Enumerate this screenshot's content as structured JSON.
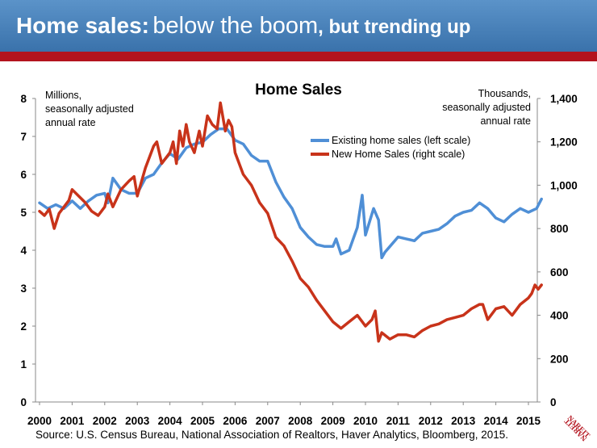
{
  "banner": {
    "title_part1": "Home sales:",
    "title_part2": "below the boom",
    "title_part3": ", but trending up"
  },
  "colors": {
    "banner_blue": "#4a82bb",
    "banner_red": "#b3131e",
    "existing_series": "#4f8fd6",
    "new_series": "#c8331a"
  },
  "source": "Source: U.S. Census Bureau, National Association of Realtors, Haver Analytics, Bloomberg, 2015.",
  "logo": {
    "icon": "nareit-logo",
    "text": "NAREIT"
  },
  "chart_data": {
    "type": "line",
    "title": "Home Sales",
    "left_axis_label": [
      "Millions,",
      "seasonally adjusted",
      "annual rate"
    ],
    "right_axis_label": [
      "Thousands,",
      "seasonally adjusted",
      "annual rate"
    ],
    "left_ylim": [
      0,
      8
    ],
    "right_ylim": [
      0,
      1400
    ],
    "left_ticks": [
      "0",
      "1",
      "2",
      "3",
      "4",
      "5",
      "6",
      "7",
      "8"
    ],
    "right_ticks": [
      "0",
      "200",
      "400",
      "600",
      "800",
      "1,000",
      "1,200",
      "1,400"
    ],
    "x_ticks": [
      "2000",
      "2001",
      "2002",
      "2003",
      "2004",
      "2005",
      "2006",
      "2007",
      "2008",
      "2009",
      "2010",
      "2011",
      "2012",
      "2013",
      "2014",
      "2015"
    ],
    "xlim": [
      2000,
      2015.5
    ],
    "grid": false,
    "legend_position": "top-center",
    "series": [
      {
        "name": "Existing home sales (left scale)",
        "axis": "left",
        "x": [
          2000.0,
          2000.25,
          2000.5,
          2000.75,
          2001.0,
          2001.25,
          2001.5,
          2001.75,
          2002.0,
          2002.1,
          2002.25,
          2002.5,
          2002.75,
          2003.0,
          2003.25,
          2003.5,
          2003.75,
          2004.0,
          2004.25,
          2004.5,
          2004.75,
          2005.0,
          2005.25,
          2005.5,
          2005.75,
          2006.0,
          2006.25,
          2006.5,
          2006.75,
          2007.0,
          2007.25,
          2007.5,
          2007.75,
          2008.0,
          2008.25,
          2008.5,
          2008.75,
          2009.0,
          2009.1,
          2009.25,
          2009.5,
          2009.75,
          2009.9,
          2010.0,
          2010.25,
          2010.4,
          2010.5,
          2010.6,
          2010.75,
          2011.0,
          2011.25,
          2011.5,
          2011.75,
          2012.0,
          2012.25,
          2012.5,
          2012.75,
          2013.0,
          2013.25,
          2013.5,
          2013.75,
          2014.0,
          2014.25,
          2014.5,
          2014.75,
          2015.0,
          2015.25,
          2015.4
        ],
        "values": [
          5.25,
          5.1,
          5.2,
          5.1,
          5.3,
          5.1,
          5.3,
          5.45,
          5.5,
          5.25,
          5.9,
          5.6,
          5.5,
          5.5,
          5.9,
          6.0,
          6.3,
          6.55,
          6.4,
          6.7,
          6.8,
          6.85,
          7.05,
          7.2,
          7.2,
          6.9,
          6.8,
          6.5,
          6.35,
          6.35,
          5.8,
          5.4,
          5.1,
          4.6,
          4.35,
          4.15,
          4.1,
          4.1,
          4.3,
          3.9,
          4.0,
          4.6,
          5.45,
          4.4,
          5.1,
          4.8,
          3.8,
          3.95,
          4.1,
          4.35,
          4.3,
          4.25,
          4.45,
          4.5,
          4.55,
          4.7,
          4.9,
          5.0,
          5.05,
          5.25,
          5.1,
          4.85,
          4.75,
          4.95,
          5.1,
          5.0,
          5.1,
          5.35
        ]
      },
      {
        "name": "New Home Sales (right scale)",
        "axis": "right",
        "x": [
          2000.0,
          2000.15,
          2000.3,
          2000.45,
          2000.6,
          2000.75,
          2000.9,
          2001.0,
          2001.2,
          2001.4,
          2001.6,
          2001.8,
          2002.0,
          2002.1,
          2002.25,
          2002.5,
          2002.75,
          2002.9,
          2003.0,
          2003.25,
          2003.5,
          2003.6,
          2003.75,
          2004.0,
          2004.1,
          2004.2,
          2004.3,
          2004.4,
          2004.5,
          2004.6,
          2004.75,
          2004.9,
          2005.0,
          2005.15,
          2005.3,
          2005.45,
          2005.55,
          2005.7,
          2005.8,
          2005.9,
          2006.0,
          2006.25,
          2006.5,
          2006.75,
          2007.0,
          2007.25,
          2007.5,
          2007.75,
          2008.0,
          2008.25,
          2008.5,
          2008.75,
          2009.0,
          2009.25,
          2009.5,
          2009.75,
          2009.9,
          2010.0,
          2010.2,
          2010.3,
          2010.4,
          2010.5,
          2010.75,
          2011.0,
          2011.25,
          2011.5,
          2011.75,
          2012.0,
          2012.25,
          2012.5,
          2012.75,
          2013.0,
          2013.25,
          2013.5,
          2013.6,
          2013.75,
          2014.0,
          2014.25,
          2014.5,
          2014.75,
          2015.0,
          2015.1,
          2015.2,
          2015.3,
          2015.4
        ],
        "values": [
          880,
          860,
          890,
          800,
          870,
          900,
          930,
          980,
          950,
          920,
          880,
          860,
          900,
          960,
          900,
          980,
          1020,
          1040,
          950,
          1080,
          1180,
          1200,
          1100,
          1150,
          1200,
          1100,
          1250,
          1180,
          1280,
          1200,
          1150,
          1250,
          1180,
          1320,
          1280,
          1260,
          1380,
          1250,
          1300,
          1270,
          1150,
          1050,
          1000,
          920,
          870,
          760,
          720,
          650,
          570,
          530,
          470,
          420,
          370,
          340,
          370,
          400,
          370,
          350,
          380,
          420,
          280,
          320,
          290,
          310,
          310,
          300,
          330,
          350,
          360,
          380,
          390,
          400,
          430,
          450,
          450,
          380,
          430,
          440,
          400,
          450,
          480,
          500,
          540,
          520,
          540
        ]
      }
    ]
  }
}
